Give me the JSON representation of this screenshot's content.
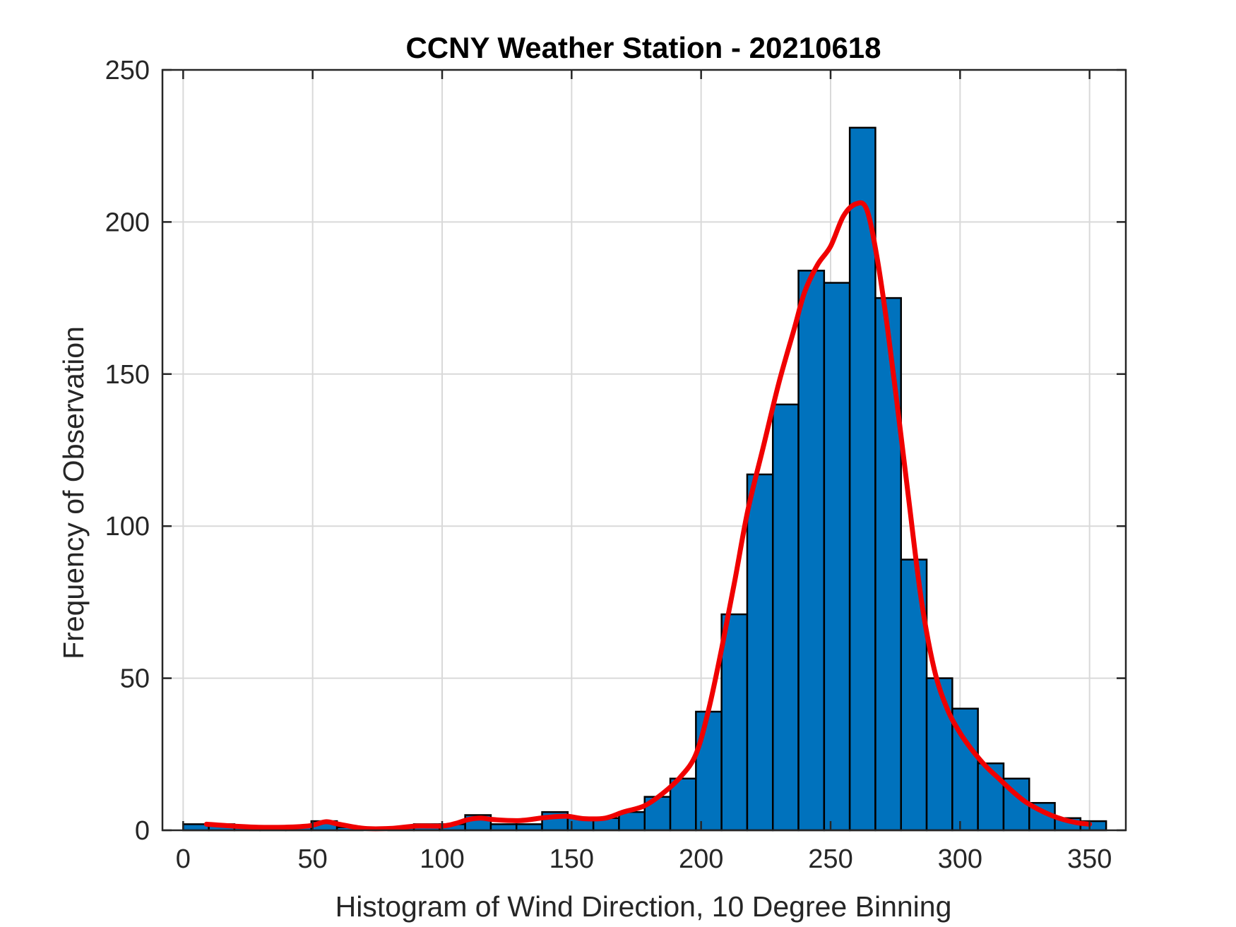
{
  "chart_data": {
    "type": "bar",
    "title": "CCNY Weather Station - 20210618",
    "xlabel": "Histogram of Wind Direction, 10 Degree Binning",
    "ylabel": "Frequency of Observation",
    "xlim": [
      -8,
      364
    ],
    "ylim": [
      0,
      250
    ],
    "xticks": [
      0,
      50,
      100,
      150,
      200,
      250,
      300,
      350
    ],
    "yticks": [
      0,
      50,
      100,
      150,
      200,
      250
    ],
    "grid": true,
    "bin_width": 10,
    "bins": [
      {
        "x0": 0,
        "x1": 9.9,
        "count": 2
      },
      {
        "x0": 9.9,
        "x1": 19.8,
        "count": 2
      },
      {
        "x0": 19.8,
        "x1": 29.7,
        "count": 1
      },
      {
        "x0": 29.7,
        "x1": 39.6,
        "count": 1
      },
      {
        "x0": 39.6,
        "x1": 49.5,
        "count": 1
      },
      {
        "x0": 49.5,
        "x1": 59.4,
        "count": 3
      },
      {
        "x0": 59.4,
        "x1": 69.3,
        "count": 1
      },
      {
        "x0": 69.3,
        "x1": 79.2,
        "count": 0
      },
      {
        "x0": 79.2,
        "x1": 89.1,
        "count": 1
      },
      {
        "x0": 89.1,
        "x1": 99.0,
        "count": 2
      },
      {
        "x0": 99.0,
        "x1": 108.9,
        "count": 2
      },
      {
        "x0": 108.9,
        "x1": 118.8,
        "count": 5
      },
      {
        "x0": 118.8,
        "x1": 128.7,
        "count": 2
      },
      {
        "x0": 128.7,
        "x1": 138.6,
        "count": 2
      },
      {
        "x0": 138.6,
        "x1": 148.5,
        "count": 6
      },
      {
        "x0": 148.5,
        "x1": 158.4,
        "count": 4
      },
      {
        "x0": 158.4,
        "x1": 168.3,
        "count": 4
      },
      {
        "x0": 168.3,
        "x1": 178.2,
        "count": 6
      },
      {
        "x0": 178.2,
        "x1": 188.1,
        "count": 11
      },
      {
        "x0": 188.1,
        "x1": 198.0,
        "count": 17
      },
      {
        "x0": 198.0,
        "x1": 207.9,
        "count": 39
      },
      {
        "x0": 207.9,
        "x1": 217.8,
        "count": 71
      },
      {
        "x0": 217.8,
        "x1": 227.7,
        "count": 117
      },
      {
        "x0": 227.7,
        "x1": 237.6,
        "count": 140
      },
      {
        "x0": 237.6,
        "x1": 247.5,
        "count": 184
      },
      {
        "x0": 247.5,
        "x1": 257.4,
        "count": 180
      },
      {
        "x0": 257.4,
        "x1": 267.3,
        "count": 231
      },
      {
        "x0": 267.3,
        "x1": 277.2,
        "count": 175
      },
      {
        "x0": 277.2,
        "x1": 287.1,
        "count": 89
      },
      {
        "x0": 287.1,
        "x1": 297.0,
        "count": 50
      },
      {
        "x0": 297.0,
        "x1": 306.9,
        "count": 40
      },
      {
        "x0": 306.9,
        "x1": 316.8,
        "count": 22
      },
      {
        "x0": 316.8,
        "x1": 326.7,
        "count": 17
      },
      {
        "x0": 326.7,
        "x1": 336.6,
        "count": 9
      },
      {
        "x0": 336.6,
        "x1": 346.5,
        "count": 4
      },
      {
        "x0": 346.5,
        "x1": 356.4,
        "count": 3
      }
    ],
    "series": [
      {
        "type": "line",
        "x": [
          9,
          19,
          29,
          39,
          49,
          55,
          60,
          70,
          80,
          90,
          100,
          105,
          110,
          115,
          120,
          130,
          140,
          148,
          155,
          163,
          170,
          178,
          185,
          192,
          198,
          203,
          208,
          213,
          218,
          224,
          230,
          236,
          240,
          245,
          250,
          255,
          260,
          264,
          268,
          272,
          276,
          280,
          285,
          290,
          295,
          300,
          305,
          310,
          315,
          320,
          325,
          330,
          335,
          340,
          345,
          350
        ],
        "y": [
          2,
          1.4,
          1,
          1,
          1.5,
          2.8,
          2,
          0.6,
          0.6,
          1.4,
          1.4,
          2.2,
          3.5,
          4,
          3.5,
          3.2,
          4.2,
          4.6,
          3.8,
          4,
          6,
          8,
          12,
          17.5,
          25,
          40,
          60,
          82,
          105,
          126,
          147,
          165,
          177,
          186,
          192,
          202,
          206,
          204,
          188,
          165,
          138,
          110,
          76,
          53,
          40,
          32,
          26,
          21,
          17,
          13,
          9.5,
          7,
          5,
          3.5,
          2.5,
          2
        ]
      }
    ],
    "colors": {
      "bars": "#0072bd",
      "bar_edge": "#000000",
      "curve": "#f00000",
      "grid": "#d9d9d9",
      "axes": "#262626"
    }
  }
}
